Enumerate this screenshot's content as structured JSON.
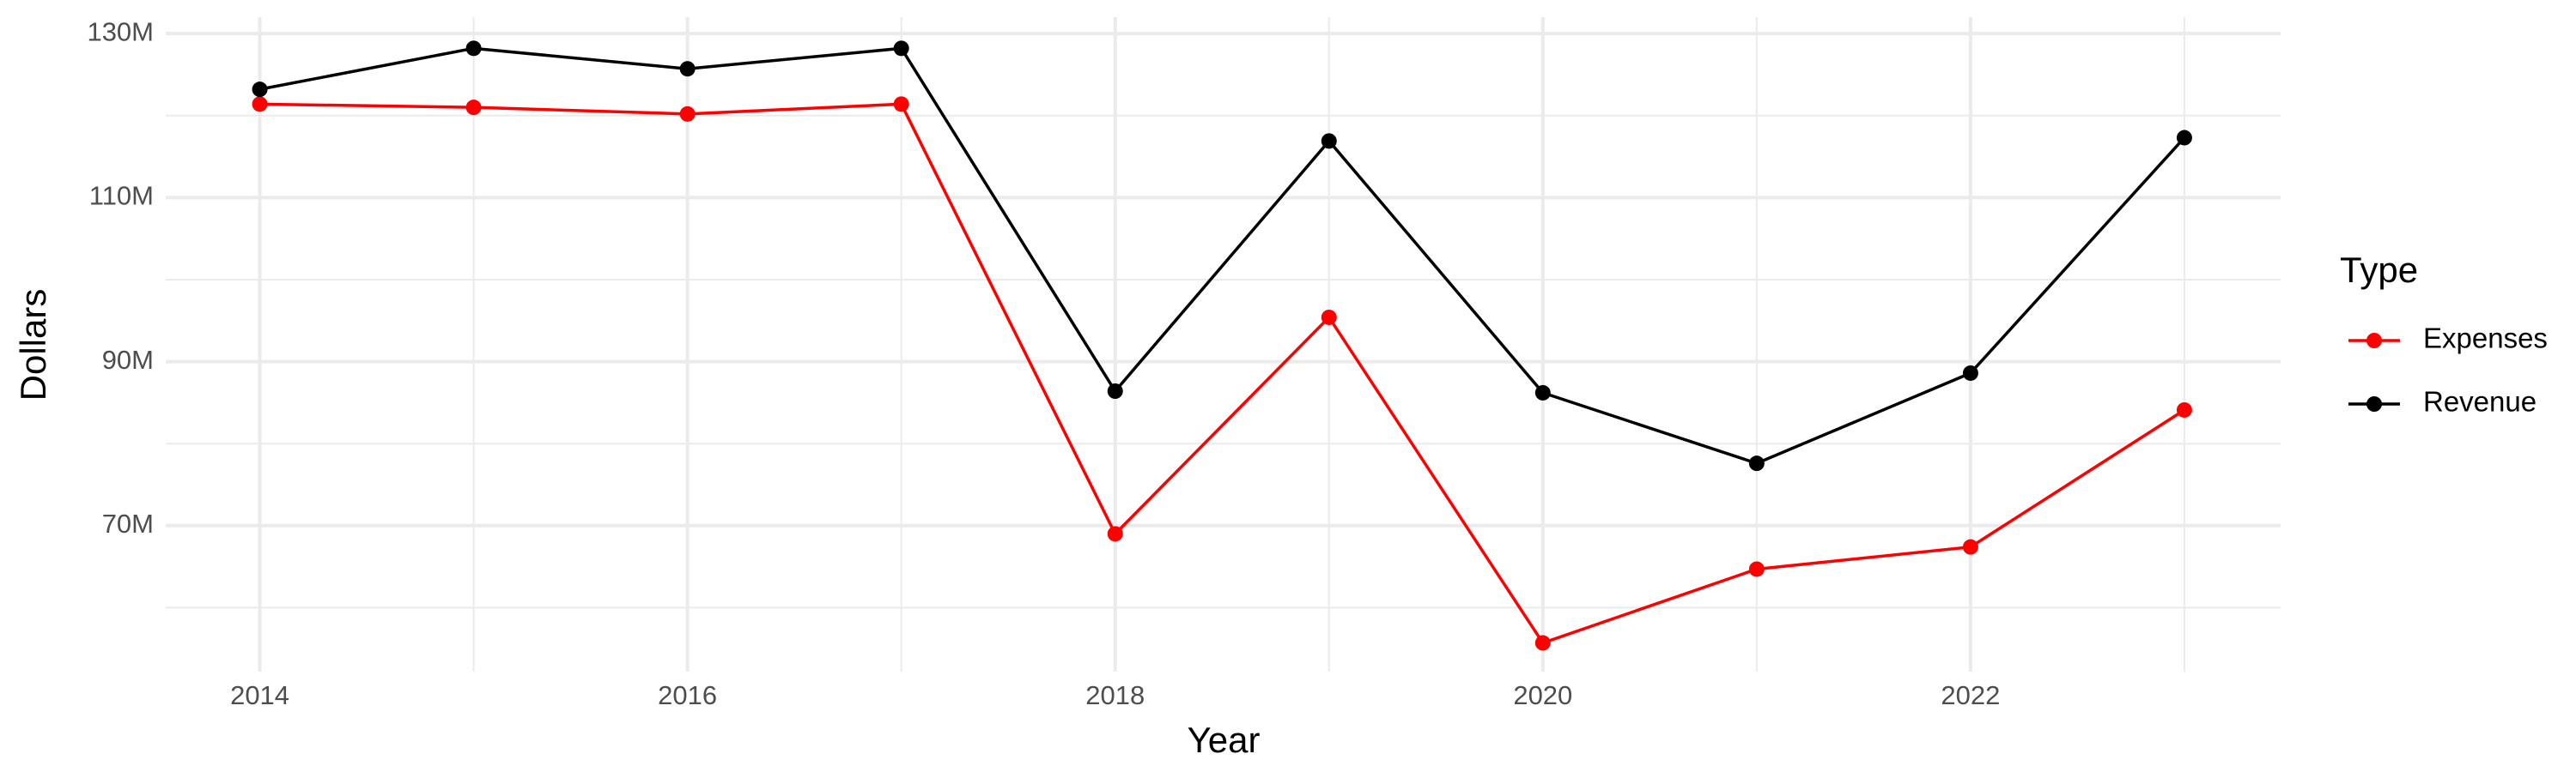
{
  "chart_data": {
    "type": "line",
    "x_label": "Year",
    "y_label": "Dollars",
    "legend_title": "Type",
    "legend_position": "right",
    "grid": true,
    "x": [
      2014,
      2015,
      2016,
      2017,
      2018,
      2019,
      2020,
      2021,
      2022,
      2023
    ],
    "series": [
      {
        "name": "Expenses",
        "color": "#ff0000",
        "values": [
          121400000,
          121000000,
          120200000,
          121400000,
          69000000,
          95400000,
          55700000,
          64700000,
          67400000,
          84100000
        ]
      },
      {
        "name": "Revenue",
        "color": "#000000",
        "values": [
          123200000,
          128200000,
          125700000,
          128200000,
          86400000,
          116900000,
          86200000,
          77600000,
          88600000,
          117300000
        ]
      }
    ],
    "xlim": [
      2013.56,
      2023.45
    ],
    "xticks": [
      2014,
      2016,
      2018,
      2020,
      2022
    ],
    "ylim": [
      52200000,
      132000000
    ],
    "yticks": [
      {
        "value": 70000000,
        "label": "70M"
      },
      {
        "value": 90000000,
        "label": "90M"
      },
      {
        "value": 110000000,
        "label": "110M"
      },
      {
        "value": 130000000,
        "label": "130M"
      }
    ]
  }
}
